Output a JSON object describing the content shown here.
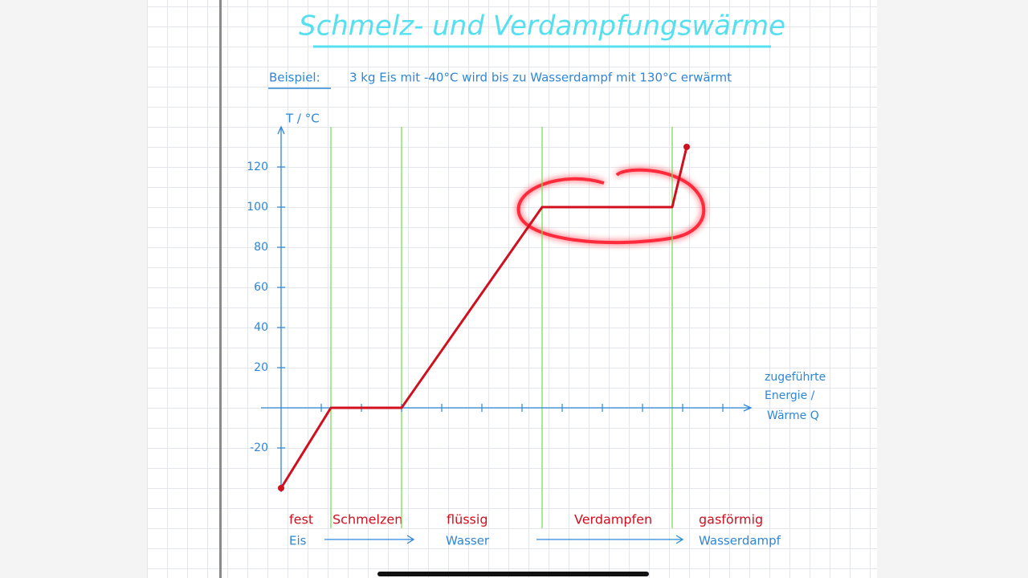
{
  "chart_data": {
    "type": "line",
    "title": "Schmelz- und Verdampfungswärme",
    "example_label": "Beispiel:",
    "subtitle": "3 kg Eis mit -40°C wird bis zu Wasserdampf mit 130°C erwärmt",
    "ylabel": "T / °C",
    "xlabel": [
      "zugeführte",
      "Energie /",
      "Wärme Q"
    ],
    "x": [
      0,
      1.24,
      3,
      6.5,
      9.74,
      10.1
    ],
    "series": [
      {
        "color": "#d0101e",
        "values": [
          -40,
          0,
          0,
          100,
          100,
          130
        ]
      }
    ],
    "xlim": [
      -0.5,
      11.7
    ],
    "ylim": [
      -42,
      140
    ],
    "xticks": [
      1,
      2,
      3,
      4,
      5,
      6,
      7,
      8,
      9,
      10,
      11
    ],
    "yticks": [
      -20,
      20,
      40,
      60,
      80,
      100,
      120
    ],
    "phase_line_color": "#7edb5c",
    "phases": [
      "fest",
      "Schmelzen",
      "flüssig",
      "Verdampfen",
      "gasförmig"
    ],
    "substances": [
      "Eis",
      "Wasser",
      "Wasserdampf"
    ]
  }
}
